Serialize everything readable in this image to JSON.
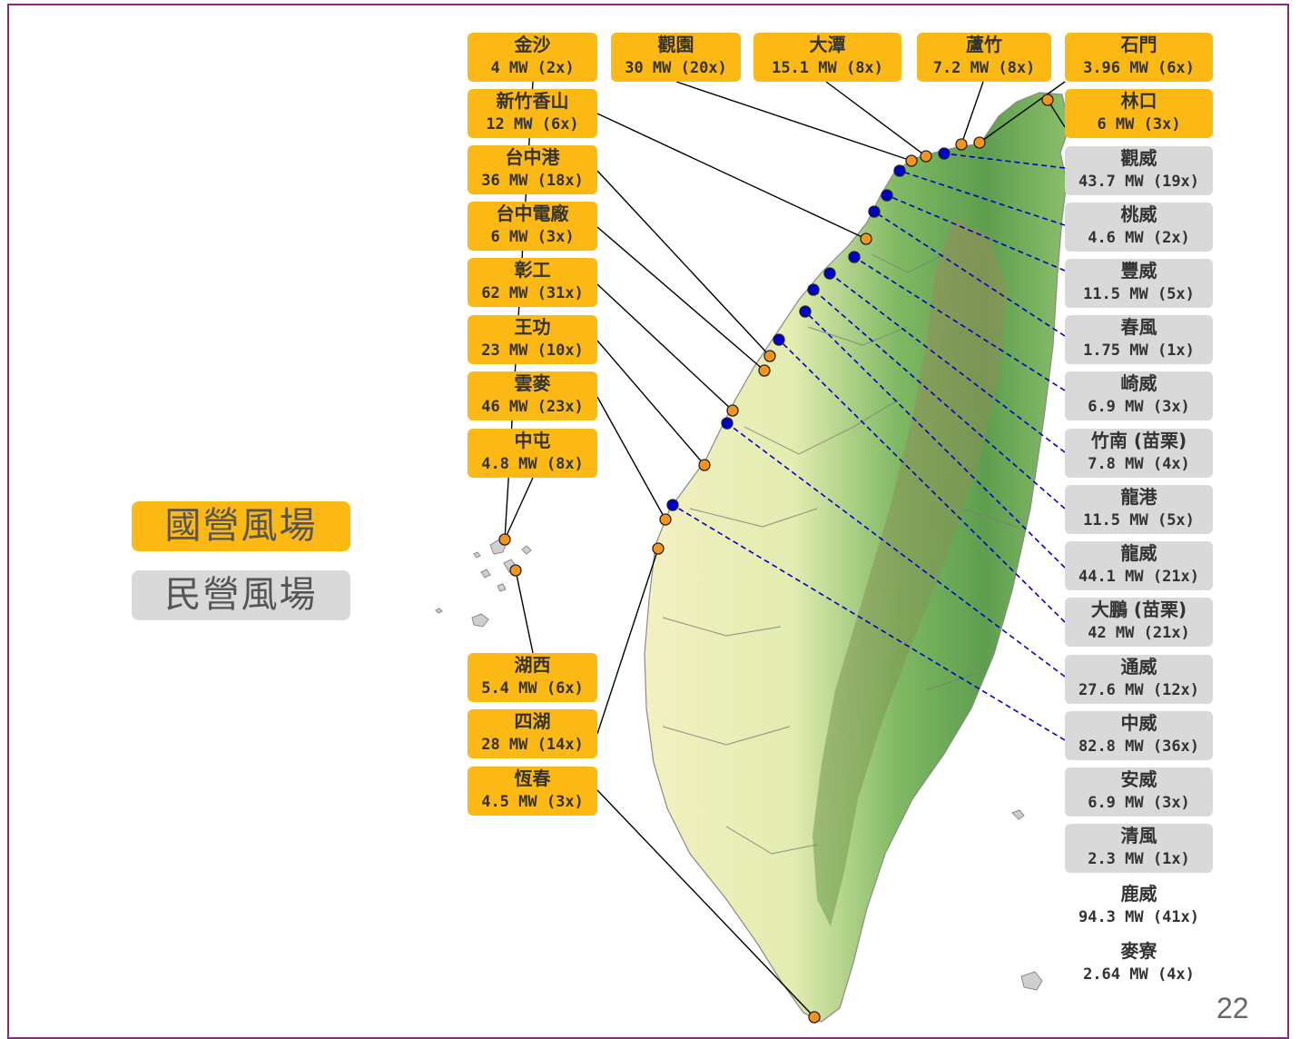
{
  "legend": {
    "state_label": "國營風場",
    "private_label": "民營風場",
    "state_color": "#fdb913",
    "private_color": "#d9d9d9"
  },
  "marker_colors": {
    "state": "#f7941d",
    "private": "#0000cc"
  },
  "page_number": "22",
  "state_farms": [
    {
      "name": "金沙",
      "capacity": "4 MW (2x)"
    },
    {
      "name": "觀園",
      "capacity": "30 MW (20x)"
    },
    {
      "name": "大潭",
      "capacity": "15.1 MW (8x)"
    },
    {
      "name": "蘆竹",
      "capacity": "7.2 MW (8x)"
    },
    {
      "name": "石門",
      "capacity": "3.96 MW (6x)"
    },
    {
      "name": "新竹香山",
      "capacity": "12 MW (6x)"
    },
    {
      "name": "林口",
      "capacity": "6 MW (3x)"
    },
    {
      "name": "台中港",
      "capacity": "36 MW (18x)"
    },
    {
      "name": "台中電廠",
      "capacity": "6 MW (3x)"
    },
    {
      "name": "彰工",
      "capacity": "62 MW (31x)"
    },
    {
      "name": "王功",
      "capacity": "23 MW (10x)"
    },
    {
      "name": "雲麥",
      "capacity": "46 MW (23x)"
    },
    {
      "name": "中屯",
      "capacity": "4.8 MW (8x)"
    },
    {
      "name": "湖西",
      "capacity": "5.4 MW (6x)"
    },
    {
      "name": "四湖",
      "capacity": "28 MW (14x)"
    },
    {
      "name": "恆春",
      "capacity": "4.5 MW (3x)"
    }
  ],
  "private_farms": [
    {
      "name": "觀威",
      "capacity": "43.7 MW (19x)"
    },
    {
      "name": "桃威",
      "capacity": "4.6 MW (2x)"
    },
    {
      "name": "豐威",
      "capacity": "11.5 MW (5x)"
    },
    {
      "name": "春風",
      "capacity": "1.75 MW (1x)"
    },
    {
      "name": "崎威",
      "capacity": "6.9 MW (3x)"
    },
    {
      "name": "竹南 (苗栗)",
      "capacity": "7.8 MW (4x)"
    },
    {
      "name": "龍港",
      "capacity": "11.5 MW (5x)"
    },
    {
      "name": "龍威",
      "capacity": "44.1 MW (21x)"
    },
    {
      "name": "大鵬 (苗栗)",
      "capacity": "42 MW (21x)"
    },
    {
      "name": "通威",
      "capacity": "27.6 MW (12x)"
    },
    {
      "name": "中威",
      "capacity": "82.8 MW (36x)"
    },
    {
      "name": "安威",
      "capacity": "6.9 MW (3x)"
    },
    {
      "name": "清風",
      "capacity": "2.3 MW (1x)"
    },
    {
      "name": "鹿威",
      "capacity": "94.3 MW (41x)"
    },
    {
      "name": "麥寮",
      "capacity": "2.64 MW (4x)"
    }
  ]
}
